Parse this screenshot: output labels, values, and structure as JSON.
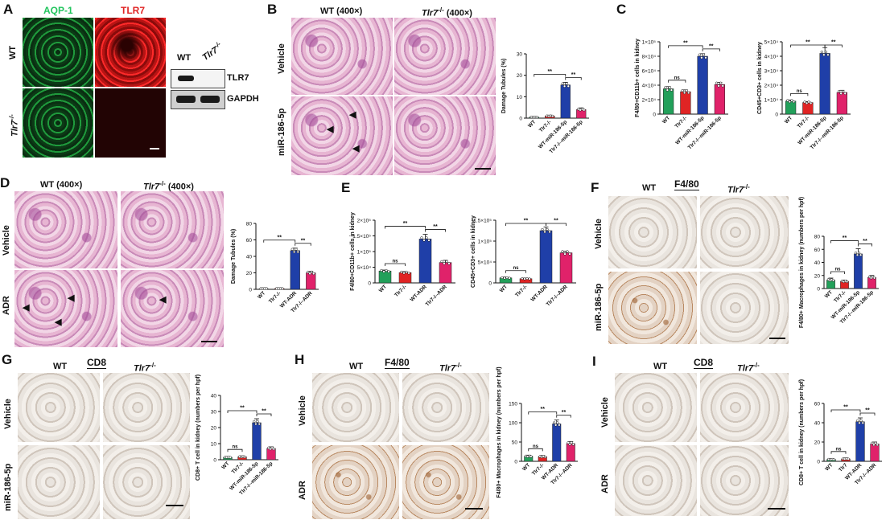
{
  "panels": {
    "A": {
      "letter": "A",
      "stain_aqp1": "AQP-1",
      "stain_tlr7": "TLR7",
      "row_wt": "WT",
      "row_ko": "Tlr7",
      "ko_sup": "-/-",
      "blot_col_wt": "WT",
      "blot_col_ko": "Tlr7",
      "blot_tlr7": "TLR7",
      "blot_gapdh": "GAPDH",
      "colors": {
        "aqp1": "#22c55e",
        "tlr7": "#e02424"
      }
    },
    "B": {
      "letter": "B",
      "col_wt": "WT (400×)",
      "col_ko": "Tlr7",
      "col_ko_suffix": "(400×)",
      "ko_sup": "-/-",
      "row1": "Vehicle",
      "row2": "miR-186-5p"
    },
    "C": {
      "letter": "C"
    },
    "D": {
      "letter": "D",
      "col_wt": "WT (400×)",
      "col_ko": "Tlr7",
      "col_ko_suffix": "(400×)",
      "ko_sup": "-/-",
      "row1": "Vehicle",
      "row2": "ADR"
    },
    "E": {
      "letter": "E"
    },
    "F": {
      "letter": "F",
      "col_wt": "WT",
      "stain": "F4/80",
      "col_ko": "Tlr7",
      "ko_sup": "-/-",
      "row1": "Vehicle",
      "row2": "miR-186-5p"
    },
    "G": {
      "letter": "G",
      "col_wt": "WT",
      "stain": "CD8",
      "col_ko": "Tlr7",
      "ko_sup": "-/-",
      "row1": "Vehicle",
      "row2": "miR-186-5p"
    },
    "H": {
      "letter": "H",
      "col_wt": "WT",
      "stain": "F4/80",
      "col_ko": "Tlr7",
      "ko_sup": "-/-",
      "row1": "Vehicle",
      "row2": "ADR"
    },
    "I": {
      "letter": "I",
      "col_wt": "WT",
      "stain": "CD8",
      "col_ko": "Tlr7",
      "ko_sup": "-/-",
      "row1": "Vehicle",
      "row2": "ADR"
    }
  },
  "chart_data": [
    {
      "id": "B",
      "type": "bar",
      "ylabel": "Damage Tubules (%)",
      "categories": [
        "WT",
        "Tlr7-/-",
        "WT-miR-186-5p",
        "Tlr7-/--miR-186-5p"
      ],
      "values": [
        0.5,
        1,
        15.5,
        4
      ],
      "errors": [
        0.3,
        0.4,
        1.2,
        0.8
      ],
      "ylim": [
        0,
        30
      ],
      "yticks": [
        0,
        10,
        20,
        30
      ],
      "sig": [
        "**",
        "**"
      ],
      "colors": [
        "#22a05a",
        "#e02424",
        "#1f3fa8",
        "#e0226a"
      ]
    },
    {
      "id": "C1",
      "type": "bar",
      "ylabel": "F4/80+CD11b+ cells in kidney",
      "categories": [
        "WT",
        "Tlr7-/-",
        "WT-miR-186-5p",
        "Tlr7-/--miR-186-5p"
      ],
      "values": [
        35000,
        31000,
        80000,
        41000
      ],
      "errors": [
        3000,
        2500,
        3500,
        3000
      ],
      "ylim": [
        0,
        100000
      ],
      "yticks": [
        0,
        20000,
        40000,
        60000,
        80000,
        100000
      ],
      "ytick_labels": [
        "0",
        "2×10⁴",
        "4×10⁴",
        "6×10⁴",
        "8×10⁴",
        "1×10⁵"
      ],
      "sig": [
        "ns",
        "**",
        "**"
      ],
      "colors": [
        "#22a05a",
        "#e02424",
        "#1f3fa8",
        "#e0226a"
      ]
    },
    {
      "id": "C2",
      "type": "bar",
      "ylabel": "CD45+CD3+ cells in kidney",
      "categories": [
        "WT",
        "Tlr7-/-",
        "WT-miR-186-5p",
        "Tlr7-/--miR-186-5p"
      ],
      "values": [
        9000,
        8000,
        42000,
        15000
      ],
      "errors": [
        800,
        700,
        4000,
        1500
      ],
      "ylim": [
        0,
        50000
      ],
      "yticks": [
        0,
        10000,
        20000,
        30000,
        40000,
        50000
      ],
      "ytick_labels": [
        "0",
        "1×10⁴",
        "2×10⁴",
        "3×10⁴",
        "4×10⁴",
        "5×10⁴"
      ],
      "sig": [
        "ns",
        "**",
        "**"
      ],
      "colors": [
        "#22a05a",
        "#e02424",
        "#1f3fa8",
        "#e0226a"
      ]
    },
    {
      "id": "D",
      "type": "bar",
      "ylabel": "Damage Tubules (%)",
      "categories": [
        "WT",
        "Tlr7-/-",
        "WT-ADR",
        "Tlr7-/--ADR"
      ],
      "values": [
        0.5,
        1,
        47,
        20
      ],
      "errors": [
        0.3,
        0.5,
        3,
        2
      ],
      "ylim": [
        0,
        80
      ],
      "yticks": [
        0,
        20,
        40,
        60,
        80
      ],
      "sig": [
        "**",
        "**"
      ],
      "colors": [
        "#22a05a",
        "#e02424",
        "#1f3fa8",
        "#e0226a"
      ]
    },
    {
      "id": "E1",
      "type": "bar",
      "ylabel": "F4/80+CD11b+ cells in kidney",
      "categories": [
        "WT",
        "Tlr7-/-",
        "WT-ADR",
        "Tlr7-/--ADR"
      ],
      "values": [
        38000,
        33000,
        140000,
        65000
      ],
      "errors": [
        3000,
        3000,
        15000,
        7000
      ],
      "ylim": [
        0,
        200000
      ],
      "yticks": [
        0,
        50000,
        100000,
        150000,
        200000
      ],
      "ytick_labels": [
        "0",
        "5×10⁴",
        "1×10⁵",
        "1.5×10⁵",
        "2×10⁵"
      ],
      "sig": [
        "ns",
        "**",
        "**"
      ],
      "colors": [
        "#22a05a",
        "#e02424",
        "#1f3fa8",
        "#e0226a"
      ]
    },
    {
      "id": "E2",
      "type": "bar",
      "ylabel": "CD45+CD3+ cells in kidney",
      "categories": [
        "WT",
        "Tlr7-/-",
        "WT-ADR",
        "Tlr7-/--ADR"
      ],
      "values": [
        12000,
        10000,
        125000,
        72000
      ],
      "errors": [
        2000,
        1500,
        9000,
        4000
      ],
      "ylim": [
        0,
        150000
      ],
      "yticks": [
        0,
        50000,
        100000,
        150000
      ],
      "ytick_labels": [
        "0",
        "5×10⁴",
        "1×10⁵",
        "1.5×10⁵"
      ],
      "sig": [
        "ns",
        "**",
        "**"
      ],
      "colors": [
        "#22a05a",
        "#e02424",
        "#1f3fa8",
        "#e0226a"
      ]
    },
    {
      "id": "F",
      "type": "bar",
      "ylabel": "F4/80+ Macrophages in kidney (numbers per hpf)",
      "categories": [
        "WT",
        "Tlr7-/-",
        "WT-miR-186-5p",
        "Tlr7-/--miR-186-5p"
      ],
      "values": [
        13,
        11,
        53,
        17
      ],
      "errors": [
        3,
        2,
        8,
        3
      ],
      "ylim": [
        0,
        80
      ],
      "yticks": [
        0,
        20,
        40,
        60,
        80
      ],
      "sig": [
        "ns",
        "**",
        "**"
      ],
      "colors": [
        "#22a05a",
        "#e02424",
        "#1f3fa8",
        "#e0226a"
      ]
    },
    {
      "id": "G",
      "type": "bar",
      "ylabel": "CD8+ T cell in kidney (numbers per hpf)",
      "categories": [
        "WT",
        "Tlr7-/-",
        "WT-miR-186-5p",
        "Tlr7-/--miR-186-5p"
      ],
      "values": [
        1.5,
        1.8,
        23,
        7
      ],
      "errors": [
        0.5,
        0.6,
        2.5,
        1
      ],
      "ylim": [
        0,
        40
      ],
      "yticks": [
        0,
        10,
        20,
        30,
        40
      ],
      "sig": [
        "ns",
        "**",
        "**"
      ],
      "colors": [
        "#22a05a",
        "#e02424",
        "#1f3fa8",
        "#e0226a"
      ]
    },
    {
      "id": "H",
      "type": "bar",
      "ylabel": "F4/80+ Macrophages in kidney (numbers per hpf)",
      "categories": [
        "WT",
        "Tlr7-/-",
        "WT-ADR",
        "Tlr7-/--ADR"
      ],
      "values": [
        13,
        12,
        97,
        46
      ],
      "errors": [
        3,
        3,
        10,
        5
      ],
      "ylim": [
        0,
        150
      ],
      "yticks": [
        0,
        50,
        100,
        150
      ],
      "sig": [
        "ns",
        "**",
        "**"
      ],
      "colors": [
        "#22a05a",
        "#e02424",
        "#1f3fa8",
        "#e0226a"
      ]
    },
    {
      "id": "I",
      "type": "bar",
      "ylabel": "CD8+ T cell in kidney (numbers per hpf)",
      "categories": [
        "WT",
        "Tlr7",
        "WT-ADR",
        "Tlr7-/--ADR"
      ],
      "values": [
        2,
        2.5,
        41,
        18
      ],
      "errors": [
        0.8,
        1,
        4,
        2
      ],
      "ylim": [
        0,
        60
      ],
      "yticks": [
        0,
        20,
        40,
        60
      ],
      "sig": [
        "ns",
        "**",
        "**"
      ],
      "colors": [
        "#22a05a",
        "#e02424",
        "#1f3fa8",
        "#e0226a"
      ]
    }
  ]
}
